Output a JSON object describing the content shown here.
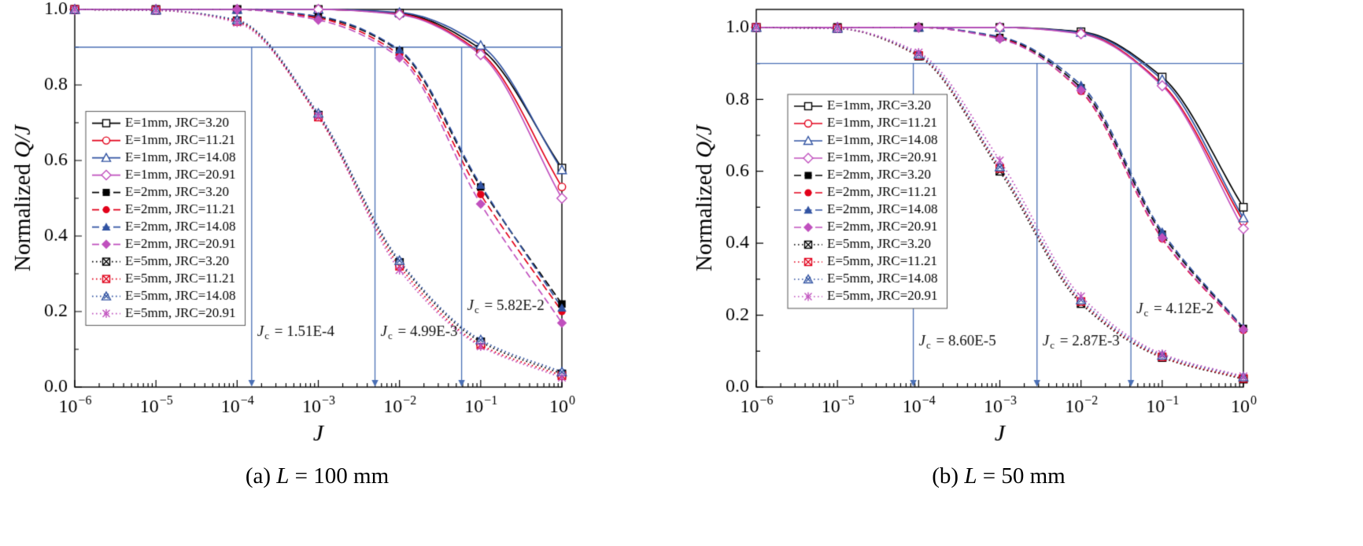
{
  "figure": {
    "background": "#ffffff"
  },
  "chart_data": [
    {
      "id": "a",
      "type": "line",
      "caption": {
        "index": "(a) ",
        "variable": "L",
        "rest": " = 100 mm"
      },
      "xlabel": "J",
      "ylabel": {
        "plain": "Normalized ",
        "italic": "Q/J"
      },
      "xscale": "log",
      "xlim": [
        1e-06,
        1
      ],
      "ylim": [
        0,
        1.0
      ],
      "x_decades": [
        -6,
        -5,
        -4,
        -3,
        -2,
        -1,
        0
      ],
      "yticks": [
        0.0,
        0.2,
        0.4,
        0.6,
        0.8,
        1.0
      ],
      "y_minor_step": 0.1,
      "x": [
        1e-06,
        1e-05,
        0.0001,
        0.001,
        0.01,
        0.1,
        1
      ],
      "ref_line": {
        "y": 0.9,
        "color": "#4a6fb5"
      },
      "annotation_color": "#111111",
      "annotations": [
        {
          "label": "Jc = 1.51E-4",
          "value_text": "1.51E-4",
          "x": 0.000151,
          "label_y": 0.135
        },
        {
          "label": "Jc = 4.99E-3",
          "value_text": "4.99E-3",
          "x": 0.00499,
          "label_y": 0.135
        },
        {
          "label": "Jc = 5.82E-2",
          "value_text": "5.82E-2",
          "x": 0.0582,
          "label_y": 0.205
        }
      ],
      "legend": {
        "x_offset": 14,
        "y_frac": 0.27
      },
      "series": [
        {
          "name": "E=1mm, JRC=3.20",
          "color": "#000000",
          "line": "solid",
          "marker": "square-open",
          "values": [
            1.0,
            1.0,
            1.0,
            1.0,
            0.99,
            0.895,
            0.58
          ]
        },
        {
          "name": "E=1mm, JRC=11.21",
          "color": "#e2001a",
          "line": "solid",
          "marker": "circle-open",
          "values": [
            1.0,
            1.0,
            1.0,
            1.0,
            0.988,
            0.885,
            0.53
          ]
        },
        {
          "name": "E=1mm, JRC=14.08",
          "color": "#3153a2",
          "line": "solid",
          "marker": "triangle-open",
          "values": [
            1.0,
            1.0,
            1.0,
            1.0,
            0.992,
            0.905,
            0.575
          ]
        },
        {
          "name": "E=1mm, JRC=20.91",
          "color": "#c050be",
          "line": "solid",
          "marker": "diamond-open",
          "values": [
            1.0,
            1.0,
            1.0,
            1.0,
            0.986,
            0.88,
            0.5
          ]
        },
        {
          "name": "E=2mm, JRC=3.20",
          "color": "#000000",
          "line": "dashed",
          "marker": "square-filled",
          "values": [
            1.0,
            1.0,
            1.0,
            0.98,
            0.89,
            0.53,
            0.22
          ]
        },
        {
          "name": "E=2mm, JRC=11.21",
          "color": "#e2001a",
          "line": "dashed",
          "marker": "circle-filled",
          "values": [
            1.0,
            1.0,
            1.0,
            0.977,
            0.88,
            0.51,
            0.2
          ]
        },
        {
          "name": "E=2mm, JRC=14.08",
          "color": "#3153a2",
          "line": "dashed",
          "marker": "triangle-filled",
          "values": [
            1.0,
            1.0,
            1.0,
            0.982,
            0.893,
            0.535,
            0.21
          ]
        },
        {
          "name": "E=2mm, JRC=20.91",
          "color": "#c050be",
          "line": "dashed",
          "marker": "diamond-filled",
          "values": [
            1.0,
            1.0,
            1.0,
            0.972,
            0.872,
            0.485,
            0.17
          ]
        },
        {
          "name": "E=5mm, JRC=3.20",
          "color": "#000000",
          "line": "dotted",
          "marker": "square-x",
          "values": [
            1.0,
            0.998,
            0.97,
            0.72,
            0.33,
            0.12,
            0.035
          ]
        },
        {
          "name": "E=5mm, JRC=11.21",
          "color": "#e2001a",
          "line": "dotted",
          "marker": "square-x",
          "values": [
            1.0,
            0.998,
            0.968,
            0.715,
            0.32,
            0.112,
            0.03
          ]
        },
        {
          "name": "E=5mm, JRC=14.08",
          "color": "#3153a2",
          "line": "dotted",
          "marker": "triangle-x",
          "values": [
            1.0,
            0.998,
            0.972,
            0.725,
            0.335,
            0.125,
            0.04
          ]
        },
        {
          "name": "E=5mm, JRC=20.91",
          "color": "#c050be",
          "line": "dotted",
          "marker": "asterisk",
          "values": [
            1.0,
            0.998,
            0.965,
            0.718,
            0.31,
            0.108,
            0.025
          ]
        }
      ]
    },
    {
      "id": "b",
      "type": "line",
      "caption": {
        "index": "(b) ",
        "variable": "L",
        "rest": " = 50 mm"
      },
      "xlabel": "J",
      "ylabel": {
        "plain": "Normalized ",
        "italic": "Q/J"
      },
      "xscale": "log",
      "xlim": [
        1e-06,
        1
      ],
      "ylim": [
        0,
        1.05
      ],
      "x_decades": [
        -6,
        -5,
        -4,
        -3,
        -2,
        -1,
        0
      ],
      "yticks": [
        0.0,
        0.2,
        0.4,
        0.6,
        0.8,
        1.0
      ],
      "y_minor_step": 0.1,
      "x": [
        1e-06,
        1e-05,
        0.0001,
        0.001,
        0.01,
        0.1,
        1
      ],
      "ref_line": {
        "y": 0.9,
        "color": "#4a6fb5"
      },
      "annotation_color": "#111111",
      "annotations": [
        {
          "label": "Jc = 8.60E-5",
          "value_text": "8.60E-5",
          "x": 8.6e-05,
          "label_y": 0.115
        },
        {
          "label": "Jc = 2.87E-3",
          "value_text": "2.87E-3",
          "x": 0.00287,
          "label_y": 0.115
        },
        {
          "label": "Jc = 4.12E-2",
          "value_text": "4.12E-2",
          "x": 0.0412,
          "label_y": 0.205
        }
      ],
      "legend": {
        "x_offset": 40,
        "y_frac": 0.225
      },
      "series": [
        {
          "name": "E=1mm, JRC=3.20",
          "color": "#000000",
          "line": "solid",
          "marker": "square-open",
          "values": [
            1.0,
            1.0,
            1.0,
            1.0,
            0.988,
            0.862,
            0.5
          ]
        },
        {
          "name": "E=1mm, JRC=11.21",
          "color": "#e2001a",
          "line": "solid",
          "marker": "circle-open",
          "values": [
            1.0,
            1.0,
            1.0,
            1.0,
            0.984,
            0.842,
            0.46
          ]
        },
        {
          "name": "E=1mm, JRC=14.08",
          "color": "#3153a2",
          "line": "solid",
          "marker": "triangle-open",
          "values": [
            1.0,
            1.0,
            1.0,
            1.0,
            0.986,
            0.855,
            0.47
          ]
        },
        {
          "name": "E=1mm, JRC=20.91",
          "color": "#c050be",
          "line": "solid",
          "marker": "diamond-open",
          "values": [
            1.0,
            1.0,
            1.0,
            1.0,
            0.982,
            0.838,
            0.44
          ]
        },
        {
          "name": "E=2mm, JRC=3.20",
          "color": "#000000",
          "line": "dashed",
          "marker": "square-filled",
          "values": [
            1.0,
            1.0,
            1.0,
            0.972,
            0.832,
            0.425,
            0.163
          ]
        },
        {
          "name": "E=2mm, JRC=11.21",
          "color": "#e2001a",
          "line": "dashed",
          "marker": "circle-filled",
          "values": [
            1.0,
            1.0,
            1.0,
            0.97,
            0.822,
            0.412,
            0.158
          ]
        },
        {
          "name": "E=2mm, JRC=14.08",
          "color": "#3153a2",
          "line": "dashed",
          "marker": "triangle-filled",
          "values": [
            1.0,
            1.0,
            1.0,
            0.974,
            0.84,
            0.432,
            0.165
          ]
        },
        {
          "name": "E=2mm, JRC=20.91",
          "color": "#c050be",
          "line": "dashed",
          "marker": "diamond-filled",
          "values": [
            1.0,
            1.0,
            1.0,
            0.968,
            0.825,
            0.415,
            0.16
          ]
        },
        {
          "name": "E=5mm, JRC=3.20",
          "color": "#000000",
          "line": "dotted",
          "marker": "square-x",
          "values": [
            1.0,
            0.997,
            0.92,
            0.6,
            0.232,
            0.082,
            0.022
          ]
        },
        {
          "name": "E=5mm, JRC=11.21",
          "color": "#e2001a",
          "line": "dotted",
          "marker": "square-x",
          "values": [
            1.0,
            0.997,
            0.922,
            0.608,
            0.238,
            0.084,
            0.024
          ]
        },
        {
          "name": "E=5mm, JRC=14.08",
          "color": "#3153a2",
          "line": "dotted",
          "marker": "triangle-x",
          "values": [
            1.0,
            0.997,
            0.925,
            0.612,
            0.242,
            0.088,
            0.028
          ]
        },
        {
          "name": "E=5mm, JRC=20.91",
          "color": "#c050be",
          "line": "dotted",
          "marker": "asterisk",
          "values": [
            1.0,
            0.997,
            0.93,
            0.63,
            0.252,
            0.092,
            0.03
          ]
        }
      ]
    }
  ]
}
